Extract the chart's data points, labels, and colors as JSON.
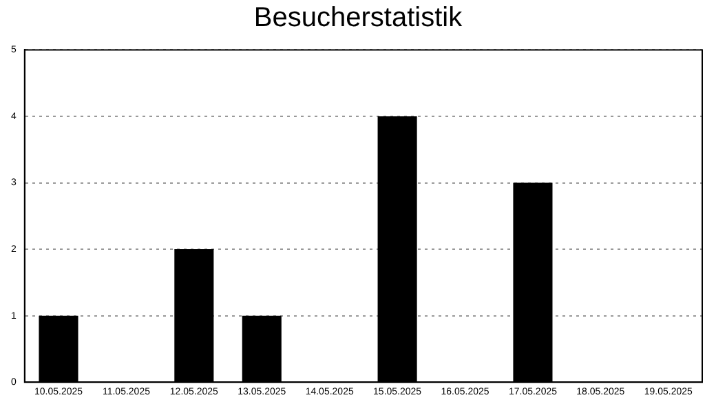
{
  "chart_data": {
    "type": "bar",
    "title": "Besucherstatistik",
    "categories": [
      "10.05.2025",
      "11.05.2025",
      "12.05.2025",
      "13.05.2025",
      "14.05.2025",
      "15.05.2025",
      "16.05.2025",
      "17.05.2025",
      "18.05.2025",
      "19.05.2025"
    ],
    "values": [
      1,
      0,
      2,
      1,
      0,
      4,
      0,
      3,
      0,
      0
    ],
    "color": "#000000",
    "ylim": [
      0,
      5
    ],
    "yticks": [
      0,
      1,
      2,
      3,
      4,
      5
    ],
    "grid": "y",
    "line_style": "dotted",
    "legend": false
  }
}
